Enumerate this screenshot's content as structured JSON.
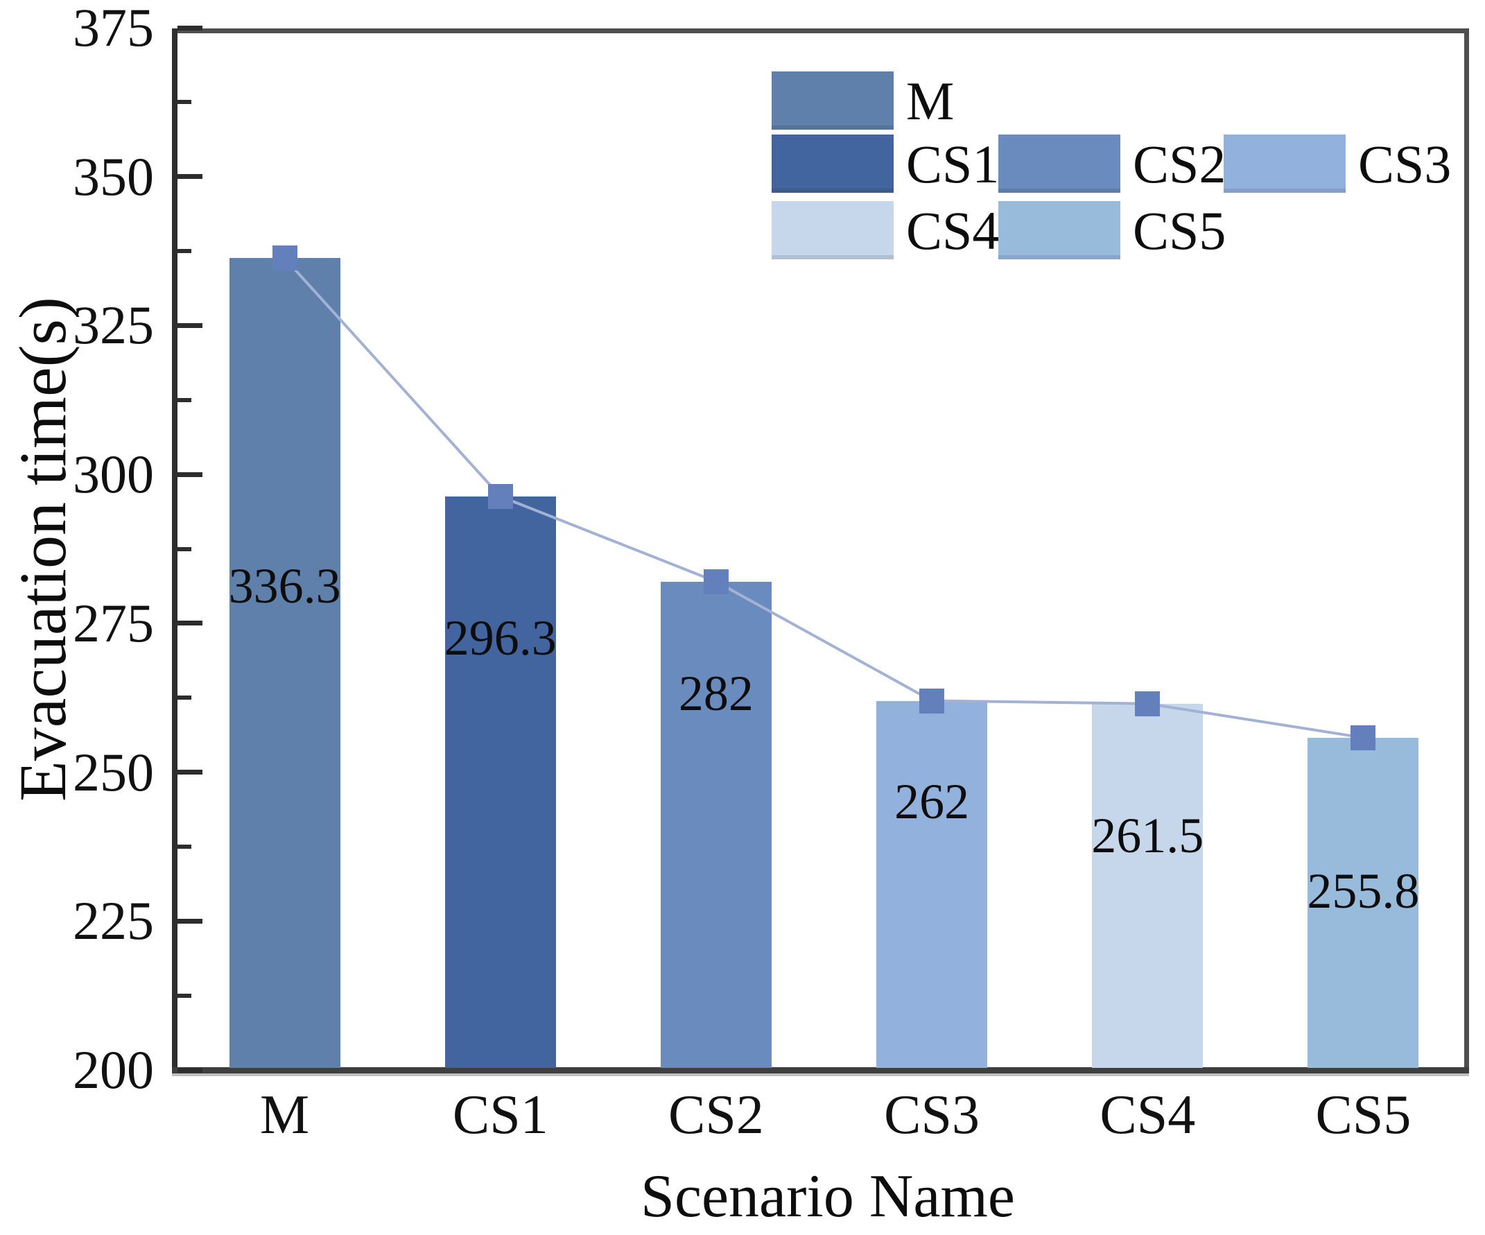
{
  "axes": {
    "y_label": "Evacuation time(s)",
    "x_label": "Scenario Name",
    "y_min": 200,
    "y_max": 375,
    "y_major_ticks": [
      375,
      350,
      325,
      300,
      275,
      250,
      225,
      200
    ],
    "y_minor_ticks": [
      362.5,
      337.5,
      312.5,
      287.5,
      262.5,
      237.5,
      212.5
    ]
  },
  "chart_data": {
    "type": "bar",
    "title": "",
    "xlabel": "Scenario Name",
    "ylabel": "Evacuation time(s)",
    "ylim": [
      200,
      375
    ],
    "grid": false,
    "legend_position": "top-right-inside",
    "categories": [
      "M",
      "CS1",
      "CS2",
      "CS3",
      "CS4",
      "CS5"
    ],
    "values": [
      336.3,
      296.3,
      282,
      262,
      261.5,
      255.8
    ],
    "value_labels": [
      "336.3",
      "296.3",
      "282",
      "262",
      "261.5",
      "255.8"
    ],
    "value_label_y_positions": [
      281.3,
      272.6,
      263.2,
      245.1,
      239.4,
      230.1
    ],
    "bar_colors": [
      "#5e80aa",
      "#43659f",
      "#6a8bbd",
      "#93b1dd",
      "#c6d7eb",
      "#98badb"
    ],
    "line_overlay": {
      "connects": "bar tops",
      "marker_shape": "square",
      "marker_color": "#6480bc",
      "line_color": "#a3b2d4"
    }
  },
  "legend": {
    "entries": [
      {
        "label": "M",
        "color": "#5e80aa",
        "row": 0,
        "col": 0
      },
      {
        "label": "CS1",
        "color": "#43659f",
        "row": 1,
        "col": 0
      },
      {
        "label": "CS2",
        "color": "#6a8bbd",
        "row": 1,
        "col": 1
      },
      {
        "label": "CS3",
        "color": "#93b1dd",
        "row": 1,
        "col": 2
      },
      {
        "label": "CS4",
        "color": "#c6d7eb",
        "row": 2,
        "col": 0
      },
      {
        "label": "CS5",
        "color": "#98badb",
        "row": 2,
        "col": 1
      }
    ]
  }
}
